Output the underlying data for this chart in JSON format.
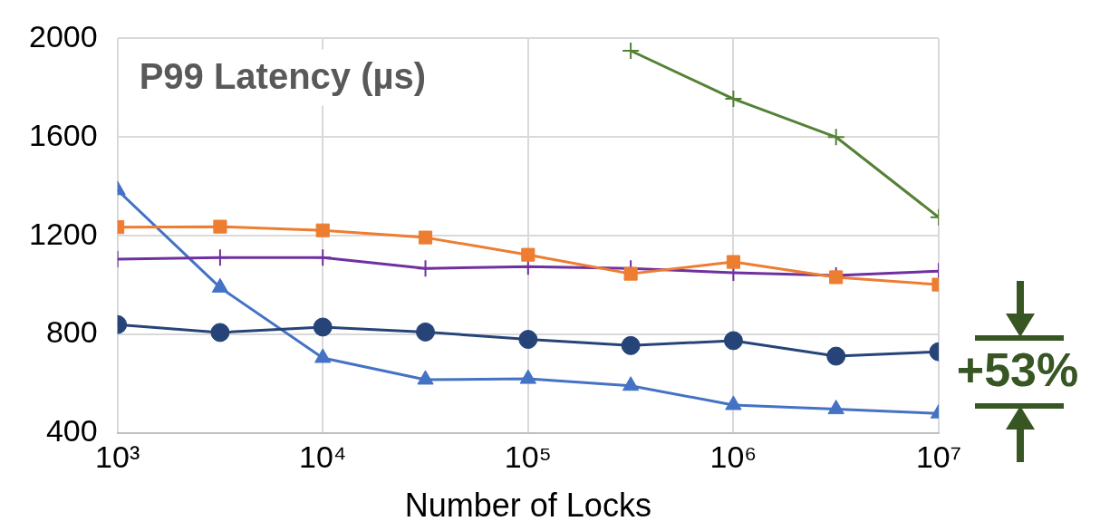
{
  "chart_data": {
    "type": "line",
    "title": "P99 Latency (µs)",
    "xlabel": "Number of Locks",
    "log": "x",
    "x": [
      1000,
      3162,
      10000,
      31623,
      100000,
      316228,
      1000000,
      3162278,
      10000000
    ],
    "xlim": [
      1000,
      10000000
    ],
    "xticks": [
      {
        "value": 1000,
        "label": "10³"
      },
      {
        "value": 10000,
        "label": "10⁴"
      },
      {
        "value": 100000,
        "label": "10⁵"
      },
      {
        "value": 1000000,
        "label": "10⁶"
      },
      {
        "value": 10000000,
        "label": "10⁷"
      }
    ],
    "ylim": [
      400,
      2000
    ],
    "yticks": [
      400,
      800,
      1200,
      1600,
      2000
    ],
    "grid": true,
    "series": [
      {
        "color": "#548235",
        "marker": "cross",
        "values": [
          null,
          null,
          null,
          null,
          null,
          1950,
          1755,
          1600,
          1275
        ]
      },
      {
        "color": "#ed7d31",
        "marker": "square",
        "values": [
          1235,
          1237,
          1222,
          1193,
          1123,
          1046,
          1094,
          1032,
          1002
        ]
      },
      {
        "color": "#7030a0",
        "marker": "cross",
        "values": [
          1105,
          1112,
          1112,
          1068,
          1075,
          1068,
          1050,
          1039,
          1057
        ]
      },
      {
        "color": "#264478",
        "marker": "circle",
        "values": [
          840,
          808,
          830,
          810,
          780,
          755,
          775,
          712,
          730
        ]
      },
      {
        "color": "#4472c4",
        "marker": "triangle",
        "values": [
          1385,
          990,
          705,
          617,
          620,
          592,
          514,
          497,
          480
        ]
      }
    ],
    "annotations": [
      "+53%"
    ]
  }
}
